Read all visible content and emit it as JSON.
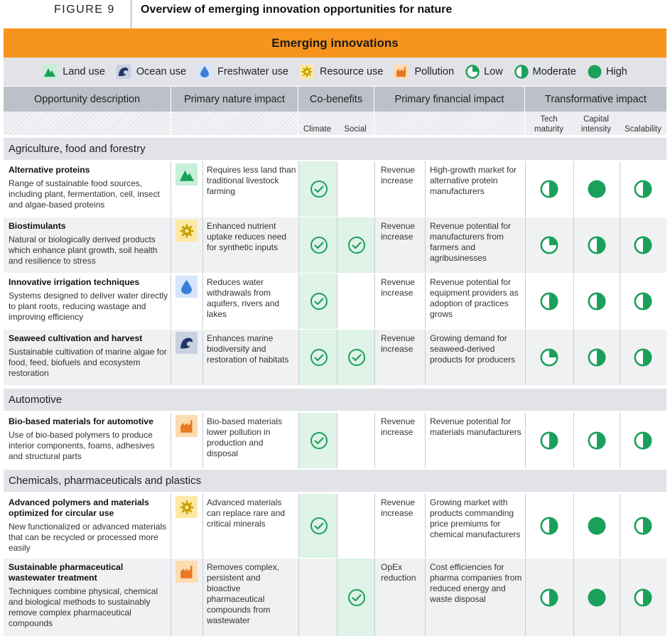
{
  "figure": {
    "number": "FIGURE 9",
    "title": "Overview of emerging innovation opportunities for nature"
  },
  "banner": "Emerging innovations",
  "legend": {
    "land": "Land use",
    "ocean": "Ocean use",
    "fresh": "Freshwater use",
    "resource": "Resource use",
    "pollution": "Pollution",
    "low": "Low",
    "moderate": "Moderate",
    "high": "High"
  },
  "colors": {
    "orange": "#f7941d",
    "green": "#1aa05a",
    "land_icon_bg": "#c8efd9",
    "ocean_icon_bg": "#c9d0e0",
    "fresh_icon_bg": "#d7e6fb",
    "resource_icon_bg": "#fce9a6",
    "pollution_icon_bg": "#fddcb0"
  },
  "columns": {
    "opportunity": "Opportunity description",
    "nature": "Primary nature impact",
    "cobenefits": "Co-benefits",
    "financial": "Primary financial impact",
    "transformative": "Transformative impact",
    "climate": "Climate",
    "social": "Social",
    "tech": [
      "Tech",
      "maturity"
    ],
    "capital": [
      "Capital",
      "intensity"
    ],
    "scalability": "Scalability"
  },
  "sections": [
    {
      "title": "Agriculture, food and forestry"
    },
    {
      "title": "Automotive"
    },
    {
      "title": "Chemicals, pharmaceuticals and plastics"
    }
  ],
  "rows": [
    {
      "name": "Alternative proteins",
      "desc": "Range of sustainable food sources, including plant, fermentation, cell, insect and algae-based proteins",
      "icon": "land-use-icon",
      "nature": "Requires less land than traditional livestock farming",
      "climate": true,
      "social": false,
      "fin_type": "Revenue increase",
      "fin_desc": "High-growth market for alternative protein manufacturers",
      "tech": "moderate",
      "capital": "high",
      "scalability": "moderate"
    },
    {
      "name": "Biostimulants",
      "desc": "Natural or biologically derived products which enhance plant growth, soil health and resilience to stress",
      "icon": "resource-use-icon",
      "nature": "Enhanced nutrient uptake reduces need for synthetic inputs",
      "climate": true,
      "social": true,
      "fin_type": "Revenue increase",
      "fin_desc": "Revenue potential for manufacturers from farmers and agribusinesses",
      "tech": "low",
      "capital": "moderate",
      "scalability": "moderate"
    },
    {
      "name": "Innovative irrigation techniques",
      "desc": "Systems designed to deliver water directly to plant roots, reducing wastage and improving efficiency",
      "icon": "freshwater-use-icon",
      "nature": "Reduces water withdrawals from aquifers, rivers and lakes",
      "climate": true,
      "social": false,
      "fin_type": "Revenue increase",
      "fin_desc": "Revenue potential for equipment providers as adoption of practices grows",
      "tech": "moderate",
      "capital": "moderate",
      "scalability": "moderate"
    },
    {
      "name": "Seaweed cultivation and harvest",
      "desc": "Sustainable cultivation of marine algae for food, feed, biofuels and ecosystem restoration",
      "icon": "ocean-use-icon",
      "nature": "Enhances marine biodiversity and restoration of habitats",
      "climate": true,
      "social": true,
      "fin_type": "Revenue increase",
      "fin_desc": "Growing demand for seaweed-derived products for producers",
      "tech": "low",
      "capital": "moderate",
      "scalability": "moderate"
    },
    {
      "name": "Bio-based materials for automotive",
      "desc": "Use of bio-based polymers to produce interior components, foams, adhesives and structural parts",
      "icon": "pollution-icon",
      "nature": "Bio-based materials lower pollution in production and disposal",
      "climate": true,
      "social": false,
      "fin_type": "Revenue increase",
      "fin_desc": "Revenue potential for materials manufacturers",
      "tech": "moderate",
      "capital": "moderate",
      "scalability": "moderate"
    },
    {
      "name": "Advanced polymers and materials optimized for circular use",
      "desc": "New functionalized or advanced materials that can be recycled or processed more easily",
      "icon": "resource-use-icon",
      "nature": "Advanced materials can replace rare and critical minerals",
      "climate": true,
      "social": false,
      "fin_type": "Revenue increase",
      "fin_desc": "Growing market with products commanding price premiums for chemical manufacturers",
      "tech": "moderate",
      "capital": "high",
      "scalability": "moderate"
    },
    {
      "name": "Sustainable pharmaceutical wastewater treatment",
      "desc": "Techniques combine physical, chemical and biological methods to sustainably remove complex pharmaceutical compounds",
      "icon": "pollution-icon",
      "nature": "Removes complex, persistent and bioactive pharmaceutical compounds from wastewater",
      "climate": false,
      "social": true,
      "fin_type": "OpEx reduction",
      "fin_desc": "Cost efficiencies for pharma companies from reduced energy and waste disposal",
      "tech": "moderate",
      "capital": "high",
      "scalability": "moderate"
    }
  ]
}
